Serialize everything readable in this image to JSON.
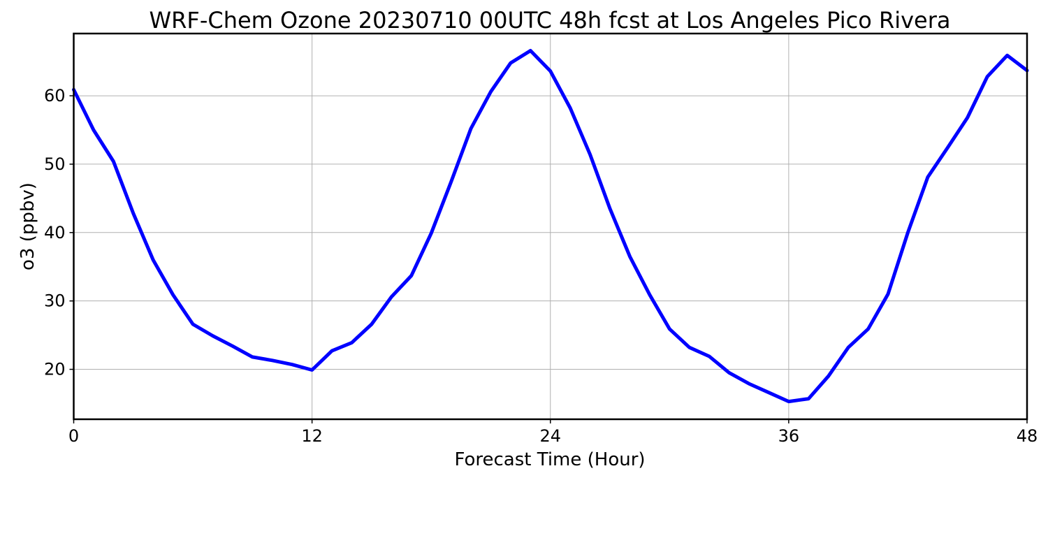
{
  "chart_data": {
    "type": "line",
    "title": "WRF-Chem Ozone  20230710 00UTC 48h fcst at Los Angeles Pico Rivera",
    "xlabel": "Forecast Time (Hour)",
    "ylabel": "o3  (ppbv)",
    "xlim": [
      0,
      48
    ],
    "ylim": [
      12.7,
      69.1
    ],
    "xticks": [
      0,
      12,
      24,
      36,
      48
    ],
    "yticks": [
      20,
      30,
      40,
      50,
      60
    ],
    "xtick_labels": [
      "0",
      "12",
      "24",
      "36",
      "48"
    ],
    "ytick_labels": [
      "20",
      "30",
      "40",
      "50",
      "60"
    ],
    "grid": true,
    "line_color": "#0000ff",
    "series": [
      {
        "x": [
          0,
          1,
          2,
          3,
          4,
          5,
          6,
          7,
          8,
          9,
          10,
          11,
          12,
          13,
          14,
          15,
          16,
          17,
          18,
          19,
          20,
          21,
          22,
          23,
          24,
          25,
          26,
          27,
          28,
          29,
          30,
          31,
          32,
          33,
          34,
          35,
          36,
          37,
          38,
          39,
          40,
          41,
          42,
          43,
          44,
          45,
          46,
          47,
          48
        ],
        "values": [
          60.9,
          55.0,
          50.4,
          42.8,
          36.0,
          30.9,
          26.6,
          24.9,
          23.4,
          21.8,
          21.3,
          20.7,
          19.9,
          22.7,
          23.9,
          26.6,
          30.6,
          33.7,
          39.9,
          47.4,
          55.2,
          60.6,
          64.8,
          66.6,
          63.6,
          58.2,
          51.4,
          43.5,
          36.5,
          30.9,
          25.9,
          23.2,
          21.9,
          19.5,
          17.9,
          16.6,
          15.3,
          15.7,
          19.0,
          23.2,
          25.9,
          31.0,
          40.0,
          48.1,
          52.4,
          56.8,
          62.8,
          65.9,
          63.7
        ]
      }
    ]
  }
}
